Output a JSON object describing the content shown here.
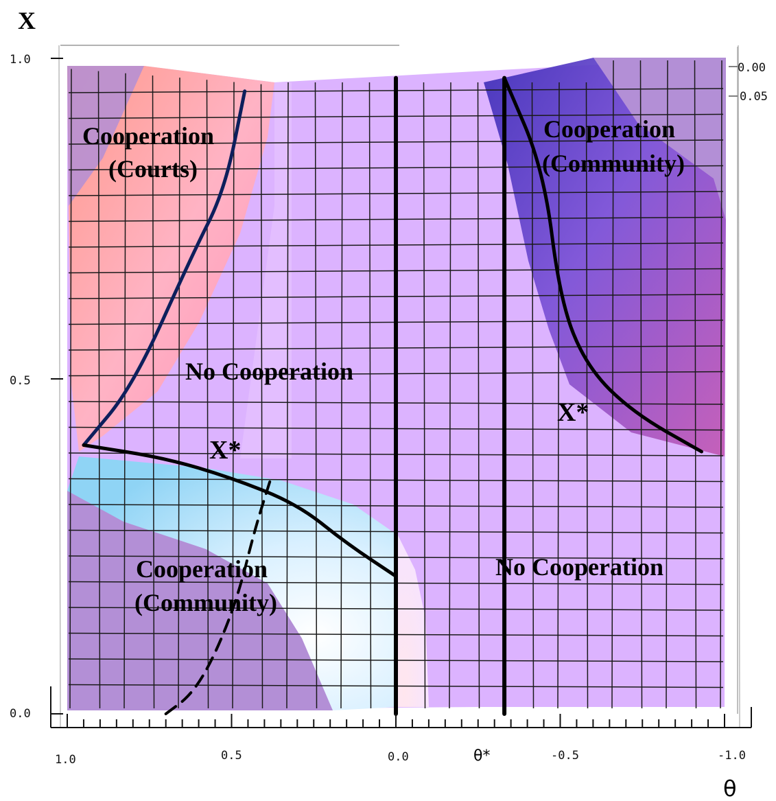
{
  "chart_data": {
    "type": "area",
    "xlabel": "θ",
    "ylabel": "X",
    "x_ticks": [
      "1.0",
      "0.5",
      "0.0",
      "θ*",
      "-0.5",
      "-1.0"
    ],
    "y_ticks": [
      "1.0",
      "0.5",
      "0.0"
    ],
    "right_ticks": [
      "0.00",
      "0.05"
    ],
    "regions": [
      {
        "label_lines": [
          "Cooperation",
          "(Courts)"
        ]
      },
      {
        "label_lines": [
          "Cooperation",
          "(Community)"
        ]
      },
      {
        "label_lines": [
          "No Cooperation"
        ]
      },
      {
        "label_lines": [
          "Cooperation",
          "(Community)"
        ]
      },
      {
        "label_lines": [
          "No Cooperation"
        ]
      }
    ],
    "markers": [
      "X*",
      "X*"
    ],
    "boundaries": {
      "courts_left": [
        [
          0.95,
          0.41
        ],
        [
          0.8,
          0.5
        ],
        [
          0.62,
          0.7
        ],
        [
          0.52,
          0.8
        ],
        [
          0.46,
          0.95
        ]
      ],
      "xstar_left": [
        [
          0.95,
          0.41
        ],
        [
          0.7,
          0.39
        ],
        [
          0.5,
          0.36
        ],
        [
          0.3,
          0.32
        ],
        [
          0.15,
          0.26
        ],
        [
          0.0,
          0.21
        ]
      ],
      "dashed_left": [
        [
          0.7,
          0.0
        ],
        [
          0.62,
          0.03
        ],
        [
          0.55,
          0.09
        ],
        [
          0.48,
          0.18
        ],
        [
          0.43,
          0.28
        ],
        [
          0.38,
          0.36
        ]
      ],
      "theta_zero": [
        [
          0.0,
          0.0
        ],
        [
          0.0,
          0.97
        ]
      ],
      "theta_star": [
        [
          -0.33,
          0.0
        ],
        [
          -0.33,
          0.97
        ]
      ],
      "xstar_right": [
        [
          -0.33,
          0.97
        ],
        [
          -0.45,
          0.83
        ],
        [
          -0.5,
          0.63
        ],
        [
          -0.58,
          0.53
        ],
        [
          -0.72,
          0.46
        ],
        [
          -0.93,
          0.4
        ]
      ]
    }
  }
}
